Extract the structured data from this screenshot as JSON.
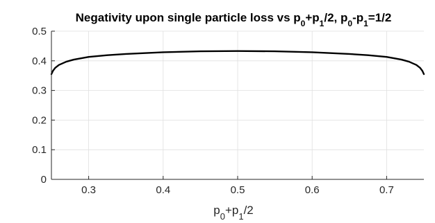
{
  "chart_data": {
    "type": "line",
    "title": {
      "parts": [
        {
          "text": "Negativity upon single particle loss vs p"
        },
        {
          "text": "0",
          "sub": true
        },
        {
          "text": "+p"
        },
        {
          "text": "1",
          "sub": true
        },
        {
          "text": "/2, p"
        },
        {
          "text": "0",
          "sub": true
        },
        {
          "text": "-p"
        },
        {
          "text": "1",
          "sub": true
        },
        {
          "text": "=1/2"
        }
      ]
    },
    "xlabel": {
      "parts": [
        {
          "text": "p"
        },
        {
          "text": "0",
          "sub": true
        },
        {
          "text": "+p"
        },
        {
          "text": "1",
          "sub": true
        },
        {
          "text": "/2"
        }
      ]
    },
    "ylabel": "",
    "xlim": [
      0.25,
      0.75
    ],
    "ylim": [
      0,
      0.5
    ],
    "xticks": [
      0.3,
      0.4,
      0.5,
      0.6,
      0.7
    ],
    "xtick_labels": [
      "0.3",
      "0.4",
      "0.5",
      "0.6",
      "0.7"
    ],
    "yticks": [
      0,
      0.1,
      0.2,
      0.3,
      0.4,
      0.5
    ],
    "ytick_labels": [
      "0",
      "0.1",
      "0.2",
      "0.3",
      "0.4",
      "0.5"
    ],
    "grid": true,
    "line_color": "#000000",
    "series": [
      {
        "x": [
          0.25,
          0.252,
          0.255,
          0.26,
          0.27,
          0.28,
          0.3,
          0.325,
          0.35,
          0.4,
          0.45,
          0.5,
          0.55,
          0.6,
          0.65,
          0.675,
          0.7,
          0.72,
          0.73,
          0.74,
          0.745,
          0.748,
          0.75
        ],
        "y": [
          0.355,
          0.366,
          0.376,
          0.386,
          0.397,
          0.404,
          0.413,
          0.419,
          0.423,
          0.429,
          0.432,
          0.433,
          0.432,
          0.429,
          0.423,
          0.419,
          0.413,
          0.404,
          0.397,
          0.386,
          0.376,
          0.366,
          0.355
        ]
      }
    ]
  }
}
